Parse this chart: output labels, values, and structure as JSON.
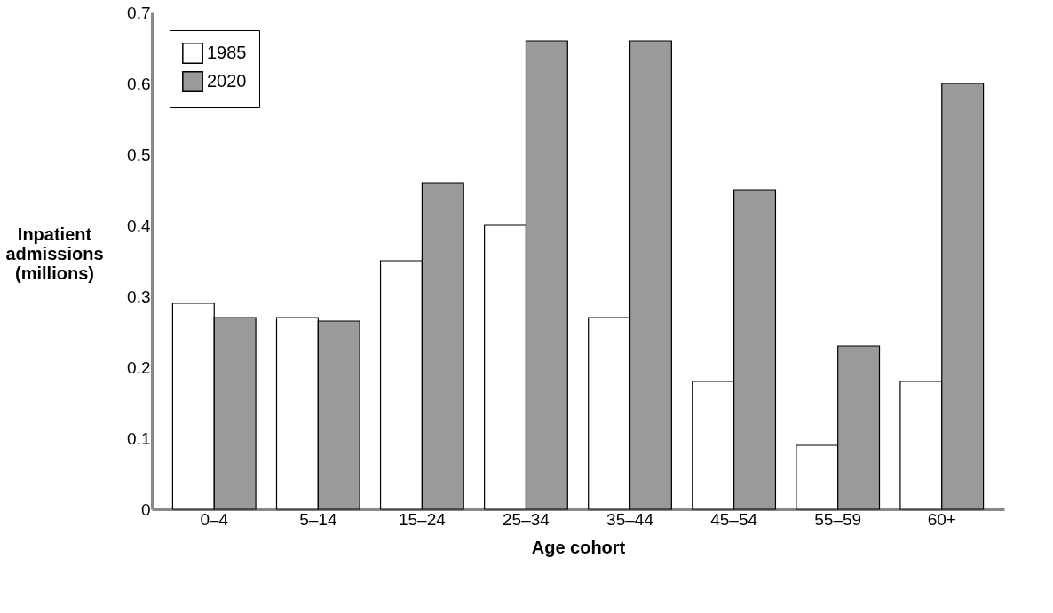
{
  "chart_data": {
    "type": "bar",
    "xlabel": "Age cohort",
    "ylabel": "Inpatient admissions (millions)",
    "categories": [
      "0–4",
      "5–14",
      "15–24",
      "25–34",
      "35–44",
      "45–54",
      "55–59",
      "60+"
    ],
    "series": [
      {
        "name": "1985",
        "color": "#ffffff",
        "values": [
          0.29,
          0.27,
          0.35,
          0.4,
          0.27,
          0.18,
          0.09,
          0.18
        ]
      },
      {
        "name": "2020",
        "color": "#9a9a9a",
        "values": [
          0.27,
          0.265,
          0.46,
          0.66,
          0.66,
          0.45,
          0.23,
          0.6
        ]
      }
    ],
    "ylim": [
      0,
      0.7
    ],
    "yticks": [
      0,
      0.1,
      0.2,
      0.3,
      0.4,
      0.5,
      0.6,
      0.7
    ],
    "grid": false,
    "legend": "top left"
  }
}
